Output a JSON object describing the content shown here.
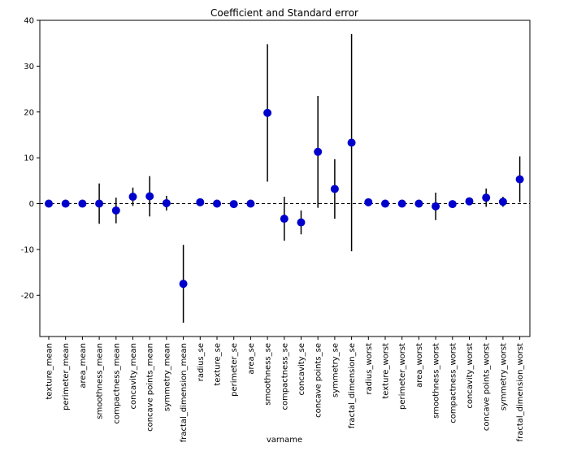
{
  "chart_data": {
    "type": "scatter",
    "title": "Coefficient and Standard error",
    "xlabel": "varname",
    "ylabel": "",
    "ylim": [
      -29,
      40
    ],
    "yticks": [
      40,
      30,
      20,
      10,
      0,
      -10,
      -20
    ],
    "reference_line": 0,
    "marker_color": "#0000CC",
    "errorbar_color": "#000000",
    "categories": [
      "texture_mean",
      "perimeter_mean",
      "area_mean",
      "smoothness_mean",
      "compactness_mean",
      "concavity_mean",
      "concave points_mean",
      "symmetry_mean",
      "fractal_dimension_mean",
      "radius_se",
      "texture_se",
      "perimeter_se",
      "area_se",
      "smoothness_se",
      "compactness_se",
      "concavity_se",
      "concave points_se",
      "symmetry_se",
      "fractal_dimension_se",
      "radius_worst",
      "texture_worst",
      "perimeter_worst",
      "area_worst",
      "smoothness_worst",
      "compactness_worst",
      "concavity_worst",
      "concave points_worst",
      "symmetry_worst",
      "fractal_dimension_worst"
    ],
    "values": [
      0.0,
      0.0,
      0.0,
      0.0,
      -1.5,
      1.5,
      1.6,
      0.1,
      -17.5,
      0.3,
      0.0,
      -0.1,
      0.0,
      19.8,
      -3.3,
      -4.1,
      11.3,
      3.2,
      13.3,
      0.3,
      0.0,
      0.0,
      0.0,
      -0.6,
      -0.1,
      0.5,
      1.3,
      0.4,
      5.3
    ],
    "errors": [
      0.0,
      0.0,
      0.0,
      4.4,
      2.8,
      2.0,
      4.4,
      1.6,
      8.5,
      0.3,
      0.0,
      0.2,
      0.0,
      15.0,
      4.8,
      2.6,
      12.2,
      6.5,
      23.7,
      0.3,
      0.0,
      0.0,
      0.0,
      3.0,
      0.2,
      0.6,
      2.0,
      1.1,
      5.0
    ]
  }
}
